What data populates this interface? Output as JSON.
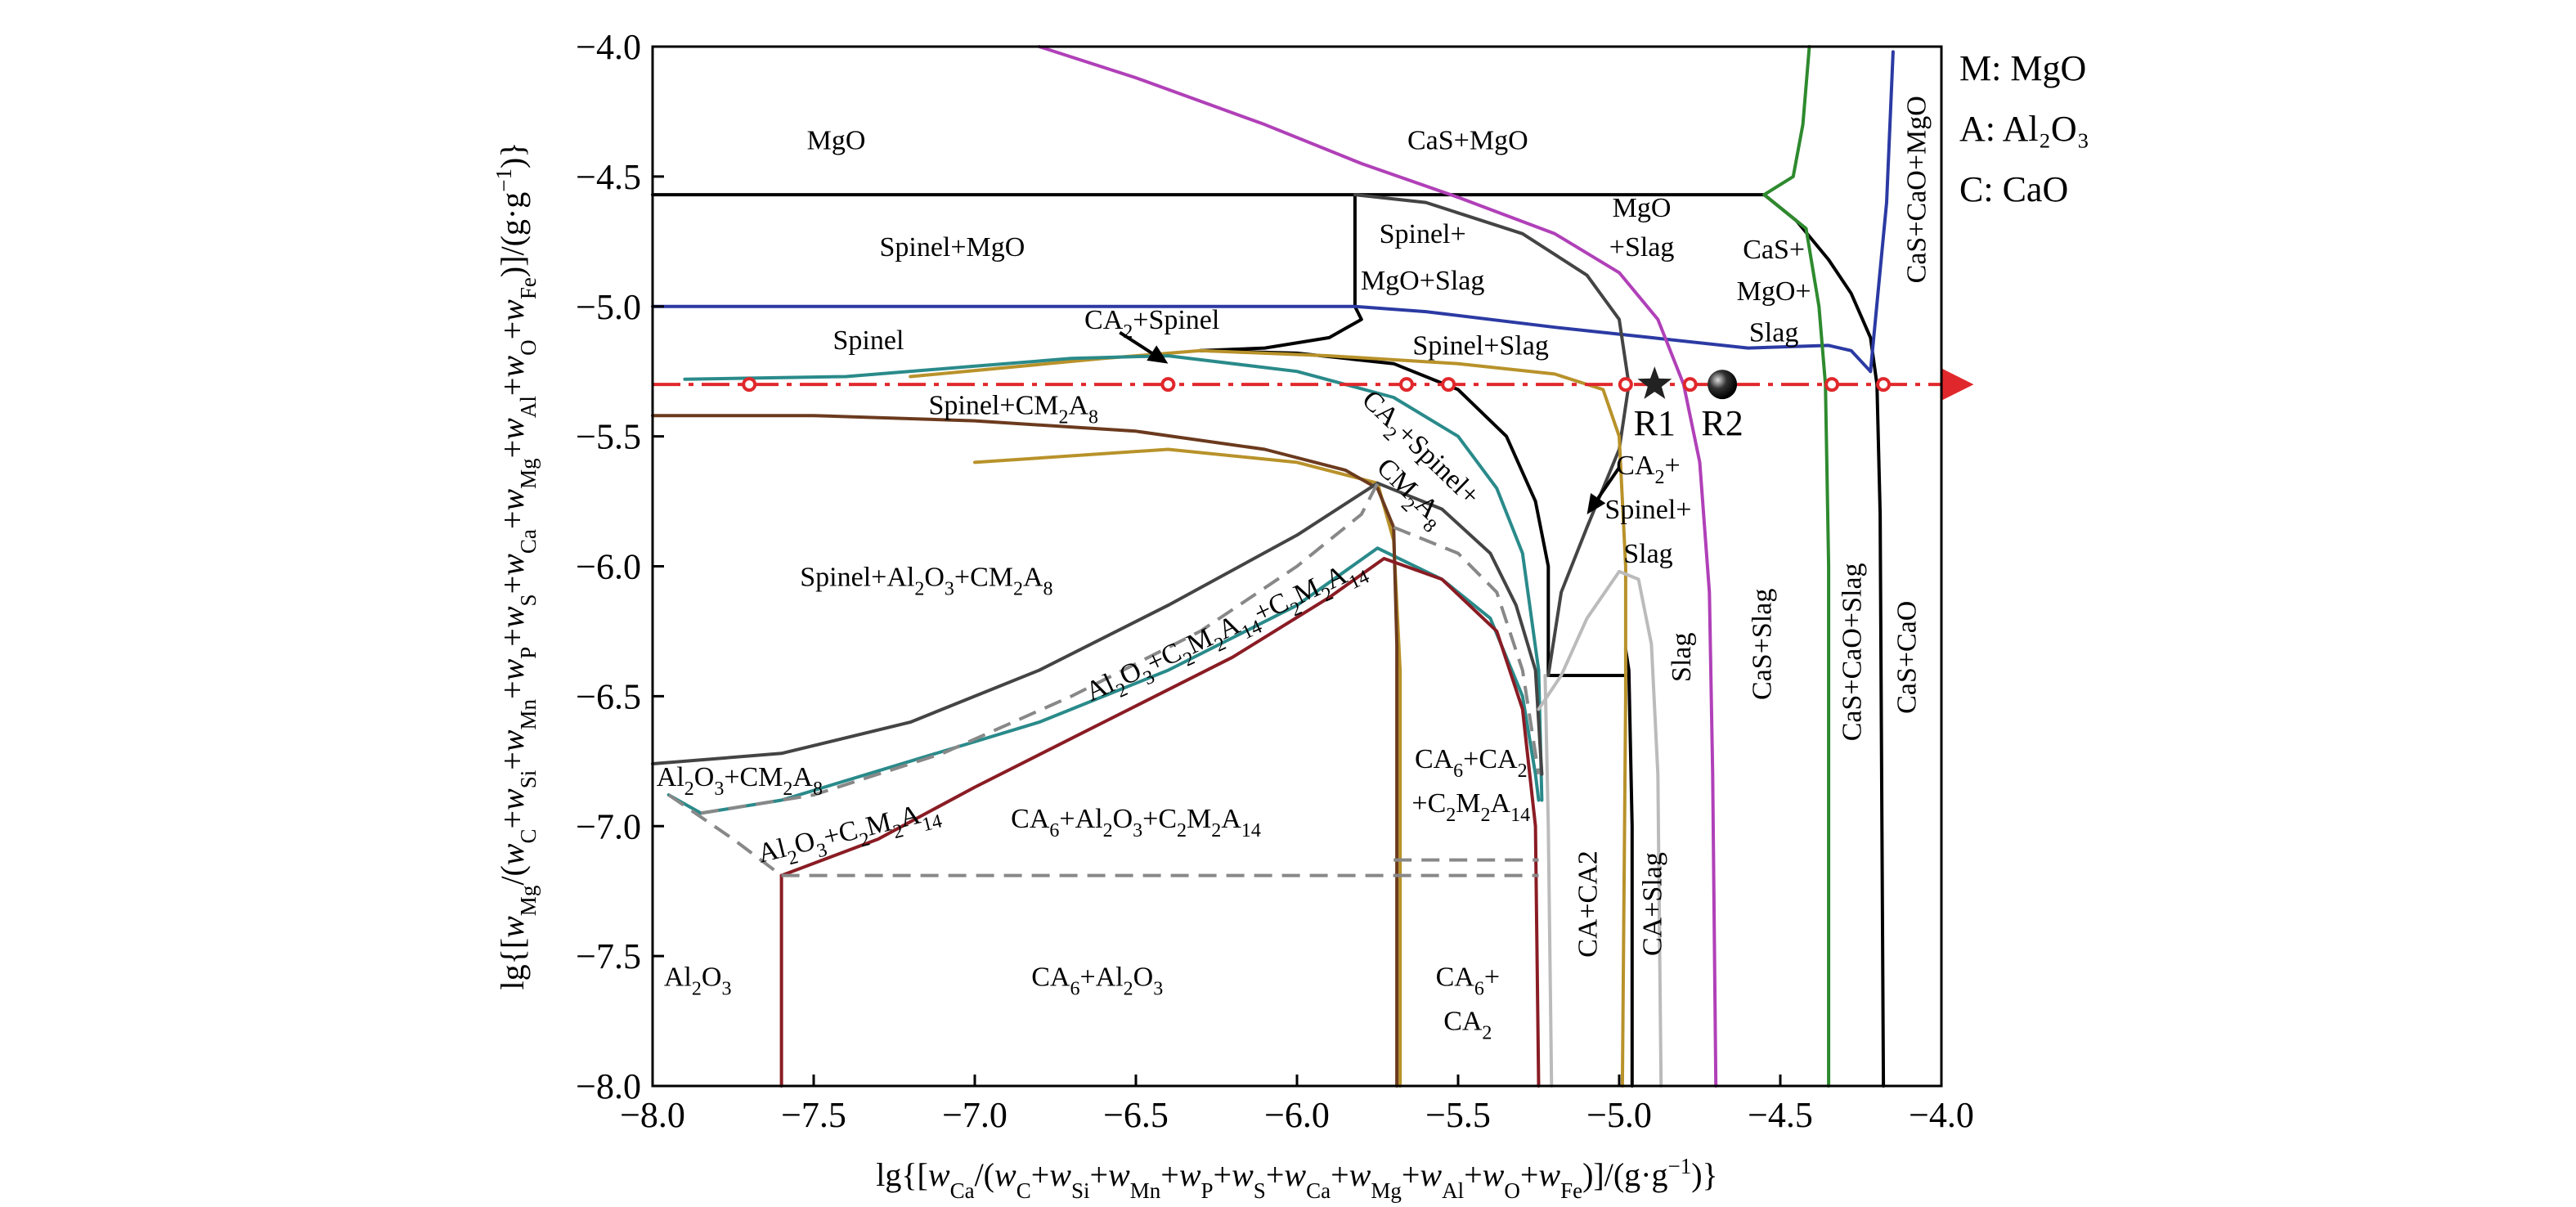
{
  "chart_data": {
    "type": "line",
    "xlim": [
      -8.0,
      -4.0
    ],
    "ylim": [
      -8.0,
      -4.0
    ],
    "xticks": [
      "−8.0",
      "−7.5",
      "−7.0",
      "−6.5",
      "−6.0",
      "−5.5",
      "−5.0",
      "−4.5",
      "−4.0"
    ],
    "yticks": [
      "−4.0",
      "−4.5",
      "−5.0",
      "−5.5",
      "−6.0",
      "−6.5",
      "−7.0",
      "−7.5",
      "−8.0"
    ],
    "xlabel": "lg{[w_Ca/(w_C+w_Si+w_Mn+w_P+w_S+w_Ca+w_Mg+w_Al+w_O+w_Fe)]/(g·g⁻¹)}",
    "ylabel": "lg{[w_Mg/(w_C+w_Si+w_Mn+w_P+w_S+w_Ca+w_Mg+w_Al+w_O+w_Fe)]/(g·g⁻¹)}",
    "legend": [
      "M: MgO",
      "A: Al₂O₃",
      "C: CaO"
    ],
    "grid": false,
    "colors": {
      "black": "#000000",
      "blue": "#2b3aa3",
      "purple": "#b040b8",
      "green": "#2e8a2e",
      "gold": "#b8922a",
      "teal": "#2a8a8a",
      "brown": "#6b3a1e",
      "darkred": "#8a1c24",
      "darkgray": "#444444",
      "gray": "#888888",
      "lightgray": "#bbbbbb",
      "red": "#e0282c"
    },
    "series": [
      {
        "color": "black",
        "points": [
          [
            -8.0,
            -4.57
          ],
          [
            -4.55,
            -4.57
          ]
        ]
      },
      {
        "color": "black",
        "points": [
          [
            -5.82,
            -4.57
          ],
          [
            -5.82,
            -5.0
          ]
        ]
      },
      {
        "color": "black",
        "points": [
          [
            -4.55,
            -4.57
          ],
          [
            -4.45,
            -4.67
          ],
          [
            -4.35,
            -4.82
          ],
          [
            -4.28,
            -4.95
          ],
          [
            -4.22,
            -5.12
          ],
          [
            -4.2,
            -5.3
          ],
          [
            -4.19,
            -5.8
          ],
          [
            -4.18,
            -8.0
          ]
        ]
      },
      {
        "color": "black",
        "points": [
          [
            -6.3,
            -5.17
          ],
          [
            -6.0,
            -5.18
          ],
          [
            -5.7,
            -5.22
          ],
          [
            -5.5,
            -5.32
          ],
          [
            -5.35,
            -5.5
          ],
          [
            -5.26,
            -5.75
          ],
          [
            -5.22,
            -6.0
          ],
          [
            -5.22,
            -6.42
          ]
        ]
      },
      {
        "color": "black",
        "points": [
          [
            -5.82,
            -5.0
          ],
          [
            -5.8,
            -5.05
          ],
          [
            -5.9,
            -5.12
          ],
          [
            -6.1,
            -5.16
          ],
          [
            -6.3,
            -5.17
          ]
        ]
      },
      {
        "color": "black",
        "points": [
          [
            -5.22,
            -6.42
          ],
          [
            -4.98,
            -6.42
          ]
        ]
      },
      {
        "color": "black",
        "points": [
          [
            -4.98,
            -6.32
          ],
          [
            -4.97,
            -6.4
          ],
          [
            -4.96,
            -7.0
          ],
          [
            -4.96,
            -8.0
          ]
        ]
      },
      {
        "color": "blue",
        "points": [
          [
            -8.0,
            -5.0
          ],
          [
            -5.82,
            -5.0
          ],
          [
            -5.6,
            -5.02
          ],
          [
            -5.2,
            -5.08
          ],
          [
            -4.9,
            -5.12
          ],
          [
            -4.6,
            -5.16
          ],
          [
            -4.35,
            -5.15
          ],
          [
            -4.28,
            -5.17
          ],
          [
            -4.22,
            -5.25
          ]
        ]
      },
      {
        "color": "blue",
        "points": [
          [
            -4.22,
            -5.25
          ],
          [
            -4.17,
            -4.6
          ],
          [
            -4.15,
            -4.02
          ]
        ]
      },
      {
        "color": "purple",
        "points": [
          [
            -6.8,
            -4.0
          ],
          [
            -6.5,
            -4.12
          ],
          [
            -6.1,
            -4.3
          ],
          [
            -5.8,
            -4.45
          ],
          [
            -5.5,
            -4.58
          ],
          [
            -5.2,
            -4.72
          ],
          [
            -5.0,
            -4.87
          ],
          [
            -4.88,
            -5.05
          ],
          [
            -4.8,
            -5.3
          ],
          [
            -4.75,
            -5.6
          ],
          [
            -4.72,
            -6.1
          ],
          [
            -4.71,
            -6.8
          ],
          [
            -4.7,
            -8.0
          ]
        ]
      },
      {
        "color": "green",
        "points": [
          [
            -4.55,
            -4.57
          ],
          [
            -4.46,
            -4.5
          ],
          [
            -4.43,
            -4.3
          ],
          [
            -4.41,
            -4.0
          ]
        ]
      },
      {
        "color": "green",
        "points": [
          [
            -4.55,
            -4.57
          ],
          [
            -4.42,
            -4.7
          ],
          [
            -4.38,
            -5.0
          ],
          [
            -4.36,
            -5.3
          ],
          [
            -4.35,
            -6.0
          ],
          [
            -4.35,
            -8.0
          ]
        ]
      },
      {
        "color": "darkgray",
        "points": [
          [
            -5.82,
            -4.57
          ],
          [
            -5.6,
            -4.6
          ],
          [
            -5.3,
            -4.72
          ],
          [
            -5.1,
            -4.88
          ],
          [
            -5.0,
            -5.05
          ],
          [
            -4.97,
            -5.3
          ],
          [
            -5.0,
            -5.55
          ],
          [
            -5.1,
            -5.85
          ],
          [
            -5.18,
            -6.1
          ],
          [
            -5.22,
            -6.42
          ]
        ]
      },
      {
        "color": "gold",
        "points": [
          [
            -7.2,
            -5.27
          ],
          [
            -6.6,
            -5.2
          ],
          [
            -6.3,
            -5.17
          ],
          [
            -5.9,
            -5.19
          ],
          [
            -5.5,
            -5.22
          ],
          [
            -5.2,
            -5.26
          ],
          [
            -5.05,
            -5.32
          ],
          [
            -5.0,
            -5.5
          ],
          [
            -4.98,
            -6.0
          ],
          [
            -4.98,
            -6.5
          ],
          [
            -4.99,
            -8.0
          ]
        ]
      },
      {
        "color": "gold",
        "points": [
          [
            -7.0,
            -5.6
          ],
          [
            -6.4,
            -5.55
          ],
          [
            -6.0,
            -5.6
          ],
          [
            -5.75,
            -5.68
          ],
          [
            -5.7,
            -5.9
          ],
          [
            -5.68,
            -6.4
          ],
          [
            -5.68,
            -8.0
          ]
        ]
      },
      {
        "color": "teal",
        "points": [
          [
            -7.9,
            -5.28
          ],
          [
            -7.4,
            -5.27
          ],
          [
            -7.0,
            -5.23
          ],
          [
            -6.7,
            -5.2
          ],
          [
            -6.4,
            -5.19
          ],
          [
            -6.0,
            -5.25
          ],
          [
            -5.7,
            -5.35
          ],
          [
            -5.5,
            -5.5
          ],
          [
            -5.38,
            -5.7
          ],
          [
            -5.3,
            -5.95
          ],
          [
            -5.25,
            -6.4
          ],
          [
            -5.24,
            -6.9
          ]
        ]
      },
      {
        "color": "teal",
        "points": [
          [
            -7.95,
            -6.88
          ],
          [
            -7.85,
            -6.95
          ],
          [
            -7.6,
            -6.9
          ],
          [
            -7.2,
            -6.75
          ],
          [
            -6.8,
            -6.6
          ],
          [
            -6.4,
            -6.4
          ],
          [
            -6.0,
            -6.15
          ],
          [
            -5.75,
            -5.93
          ],
          [
            -5.55,
            -6.05
          ],
          [
            -5.4,
            -6.2
          ],
          [
            -5.3,
            -6.5
          ],
          [
            -5.26,
            -6.8
          ],
          [
            -5.25,
            -6.9
          ]
        ]
      },
      {
        "color": "brown",
        "points": [
          [
            -8.0,
            -5.42
          ],
          [
            -7.5,
            -5.42
          ],
          [
            -7.0,
            -5.44
          ],
          [
            -6.5,
            -5.48
          ],
          [
            -6.1,
            -5.55
          ],
          [
            -5.85,
            -5.63
          ],
          [
            -5.75,
            -5.7
          ],
          [
            -5.7,
            -5.85
          ],
          [
            -5.69,
            -6.3
          ],
          [
            -5.69,
            -8.0
          ]
        ]
      },
      {
        "color": "darkred",
        "points": [
          [
            -7.6,
            -7.19
          ],
          [
            -7.3,
            -7.05
          ],
          [
            -7.0,
            -6.85
          ],
          [
            -6.6,
            -6.6
          ],
          [
            -6.2,
            -6.35
          ],
          [
            -5.9,
            -6.12
          ],
          [
            -5.73,
            -5.97
          ],
          [
            -5.55,
            -6.05
          ],
          [
            -5.38,
            -6.25
          ],
          [
            -5.3,
            -6.55
          ],
          [
            -5.26,
            -7.0
          ],
          [
            -5.25,
            -8.0
          ]
        ]
      },
      {
        "color": "darkred",
        "points": [
          [
            -7.6,
            -7.19
          ],
          [
            -7.6,
            -8.0
          ]
        ]
      },
      {
        "color": "darkgray",
        "points": [
          [
            -8.0,
            -6.76
          ],
          [
            -7.6,
            -6.72
          ],
          [
            -7.2,
            -6.6
          ],
          [
            -6.8,
            -6.4
          ],
          [
            -6.4,
            -6.15
          ],
          [
            -6.0,
            -5.88
          ],
          [
            -5.75,
            -5.68
          ]
        ]
      },
      {
        "color": "darkgray",
        "points": [
          [
            -5.75,
            -5.68
          ],
          [
            -5.55,
            -5.78
          ],
          [
            -5.4,
            -5.95
          ],
          [
            -5.32,
            -6.15
          ],
          [
            -5.26,
            -6.4
          ],
          [
            -5.24,
            -6.8
          ]
        ]
      },
      {
        "color": "gray",
        "dashed": true,
        "points": [
          [
            -7.85,
            -6.95
          ],
          [
            -7.5,
            -6.88
          ],
          [
            -7.1,
            -6.72
          ],
          [
            -6.7,
            -6.5
          ],
          [
            -6.3,
            -6.25
          ],
          [
            -6.0,
            -6.0
          ],
          [
            -5.8,
            -5.8
          ],
          [
            -5.75,
            -5.68
          ]
        ]
      },
      {
        "color": "gray",
        "dashed": true,
        "points": [
          [
            -5.7,
            -5.85
          ],
          [
            -5.5,
            -5.95
          ],
          [
            -5.38,
            -6.1
          ],
          [
            -5.3,
            -6.4
          ],
          [
            -5.25,
            -6.8
          ]
        ]
      },
      {
        "color": "gray",
        "dashed": true,
        "points": [
          [
            -7.95,
            -6.88
          ],
          [
            -7.75,
            -7.05
          ],
          [
            -7.6,
            -7.19
          ]
        ]
      },
      {
        "color": "gray",
        "dashed": true,
        "points": [
          [
            -7.6,
            -7.19
          ],
          [
            -5.25,
            -7.19
          ]
        ]
      },
      {
        "color": "gray",
        "dashed": true,
        "points": [
          [
            -5.7,
            -7.13
          ],
          [
            -5.25,
            -7.13
          ]
        ]
      },
      {
        "color": "lightgray",
        "points": [
          [
            -5.25,
            -6.55
          ],
          [
            -5.18,
            -6.42
          ],
          [
            -5.1,
            -6.2
          ],
          [
            -5.0,
            -6.02
          ],
          [
            -4.94,
            -6.05
          ],
          [
            -4.9,
            -6.3
          ],
          [
            -4.88,
            -6.8
          ],
          [
            -4.87,
            -8.0
          ]
        ]
      },
      {
        "color": "lightgray",
        "points": [
          [
            -5.23,
            -6.42
          ],
          [
            -5.22,
            -7.0
          ],
          [
            -5.21,
            -8.0
          ]
        ]
      }
    ],
    "reference_line": {
      "y": -5.3,
      "x_start": -8.0,
      "x_end": -3.92,
      "color": "red"
    },
    "markers": [
      -7.7,
      -6.4,
      -5.66,
      -5.53,
      -4.98,
      -4.78,
      -4.34,
      -4.18
    ],
    "points": [
      {
        "label": "R1",
        "x": -4.89,
        "y": -5.3,
        "shape": "star"
      },
      {
        "label": "R2",
        "x": -4.68,
        "y": -5.3,
        "shape": "sphere"
      }
    ],
    "arrows": [
      {
        "from": [
          -6.55,
          -5.1
        ],
        "to": [
          -6.4,
          -5.22
        ]
      },
      {
        "from": [
          -5.0,
          -5.62
        ],
        "to": [
          -5.1,
          -5.8
        ]
      }
    ],
    "regions": [
      {
        "text": "MgO",
        "x": -7.43,
        "y": -4.37,
        "rotate": 0
      },
      {
        "text": "CaS+MgO",
        "x": -5.47,
        "y": -4.37,
        "rotate": 0
      },
      {
        "text": "Spinel+MgO",
        "x": -7.07,
        "y": -4.78,
        "rotate": 0
      },
      {
        "text": "Spinel+",
        "x": -5.61,
        "y": -4.73,
        "rotate": 0
      },
      {
        "text": "MgO+Slag",
        "x": -5.61,
        "y": -4.91,
        "rotate": 0
      },
      {
        "text": "MgO",
        "x": -4.93,
        "y": -4.63,
        "rotate": 0
      },
      {
        "text": "+Slag",
        "x": -4.93,
        "y": -4.78,
        "rotate": 0
      },
      {
        "text": "CaS+",
        "x": -4.52,
        "y": -4.79,
        "rotate": 0
      },
      {
        "text": "MgO+",
        "x": -4.52,
        "y": -4.95,
        "rotate": 0
      },
      {
        "text": "Slag",
        "x": -4.52,
        "y": -5.11,
        "rotate": 0
      },
      {
        "text": "CaS+CaO+MgO",
        "x": -4.07,
        "y": -4.55,
        "rotate": -90
      },
      {
        "text": "Spinel",
        "x": -7.33,
        "y": -5.14,
        "rotate": 0
      },
      {
        "text": "CA₂+Spinel",
        "x": -6.45,
        "y": -5.06,
        "rotate": 0
      },
      {
        "text": "Spinel+Slag",
        "x": -5.43,
        "y": -5.16,
        "rotate": 0
      },
      {
        "text": "Spinel+CM₂A₈",
        "x": -6.88,
        "y": -5.39,
        "rotate": 0
      },
      {
        "text": "CA₂+Spinel+",
        "x": -5.62,
        "y": -5.55,
        "rotate": 44
      },
      {
        "text": "CM₂A₈",
        "x": -5.65,
        "y": -5.72,
        "rotate": 44
      },
      {
        "text": "CA₂+",
        "x": -4.91,
        "y": -5.62,
        "rotate": 0
      },
      {
        "text": "Spinel+",
        "x": -4.91,
        "y": -5.79,
        "rotate": 0
      },
      {
        "text": "Slag",
        "x": -4.91,
        "y": -5.96,
        "rotate": 0
      },
      {
        "text": "Spinel+Al₂O₃+CM₂A₈",
        "x": -7.15,
        "y": -6.05,
        "rotate": 0
      },
      {
        "text": "Al₂O₃+C₂M₂A₁₄+C₂M₂A₁₄",
        "x": -6.22,
        "y": -6.25,
        "rotate": -25
      },
      {
        "text": "Slag",
        "x": -4.8,
        "y": -6.35,
        "rotate": -90
      },
      {
        "text": "CaS+Slag",
        "x": -4.55,
        "y": -6.3,
        "rotate": -90
      },
      {
        "text": "CaS+CaO+Slag",
        "x": -4.27,
        "y": -6.33,
        "rotate": -90
      },
      {
        "text": "CaS+CaO",
        "x": -4.1,
        "y": -6.35,
        "rotate": -90
      },
      {
        "text": "Al₂O₃+CM₂A₈",
        "x": -7.73,
        "y": -6.82,
        "rotate": 0
      },
      {
        "text": "Al₂O₃+C₂M₂A₁₄",
        "x": -7.39,
        "y": -7.03,
        "rotate": -14
      },
      {
        "text": "CA₆+Al₂O₃+C₂M₂A₁₄",
        "x": -6.5,
        "y": -6.98,
        "rotate": 0
      },
      {
        "text": "CA₆+CA₂",
        "x": -5.46,
        "y": -6.75,
        "rotate": 0
      },
      {
        "text": "+C₂M₂A₁₄",
        "x": -5.46,
        "y": -6.92,
        "rotate": 0
      },
      {
        "text": "CA+CA2",
        "x": -5.09,
        "y": -7.3,
        "rotate": -90
      },
      {
        "text": "CA+Slag",
        "x": -4.89,
        "y": -7.3,
        "rotate": -90
      },
      {
        "text": "Al₂O₃",
        "x": -7.86,
        "y": -7.59,
        "rotate": 0
      },
      {
        "text": "CA₆+Al₂O₃",
        "x": -6.62,
        "y": -7.59,
        "rotate": 0
      },
      {
        "text": "CA₆+",
        "x": -5.47,
        "y": -7.59,
        "rotate": 0
      },
      {
        "text": "CA₂",
        "x": -5.47,
        "y": -7.76,
        "rotate": 0
      }
    ]
  }
}
